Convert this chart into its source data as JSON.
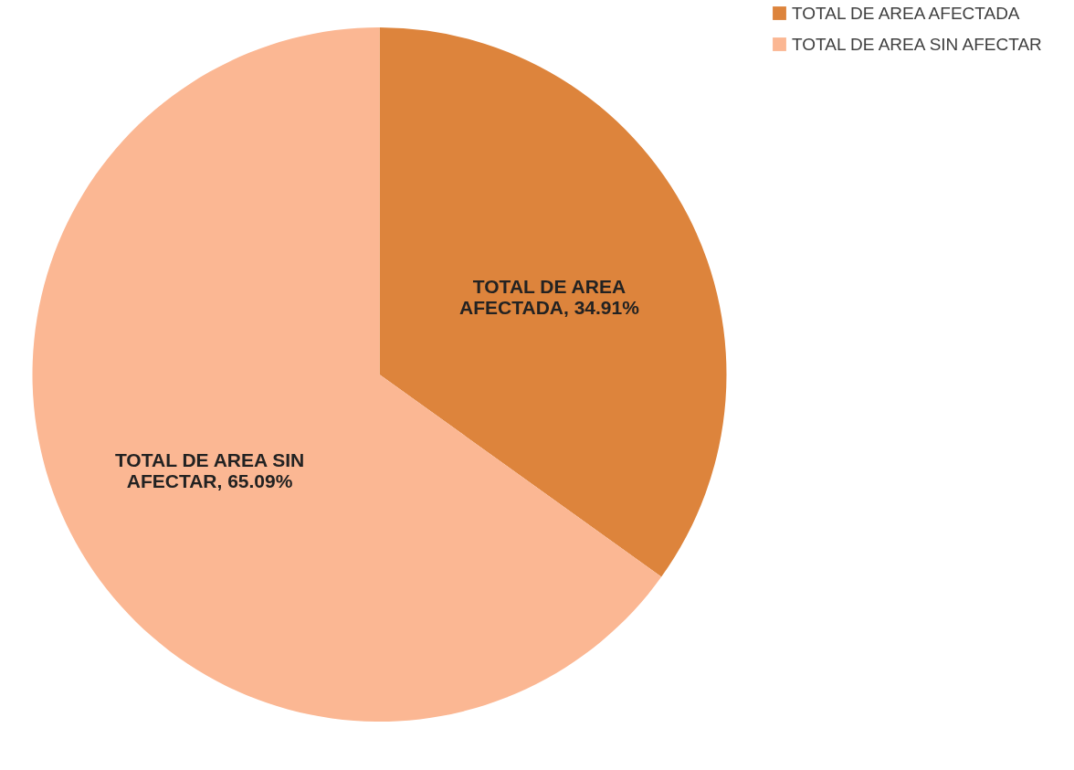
{
  "chart_data": {
    "type": "pie",
    "categories": [
      "TOTAL DE AREA AFECTADA",
      "TOTAL DE AREA SIN AFECTAR"
    ],
    "values": [
      34.91,
      65.09
    ],
    "colors": [
      "#dd843c",
      "#fbb793"
    ],
    "value_labels": [
      "TOTAL DE AREA AFECTADA, 34.91%",
      "TOTAL DE AREA SIN AFECTAR, 65.09%"
    ],
    "legend": "right"
  }
}
